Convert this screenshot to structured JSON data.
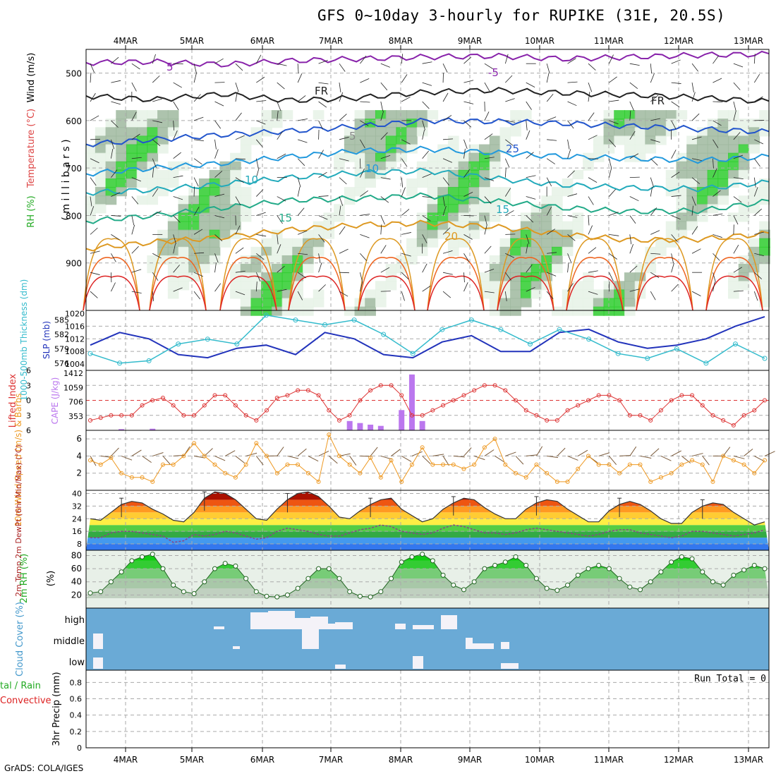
{
  "title": "GFS 0~10day 3-hourly for RUPIKE (31E, 20.5S)",
  "credit": "GrADS: COLA/IGES",
  "dates": [
    "4MAR",
    "5MAR",
    "6MAR",
    "7MAR",
    "8MAR",
    "9MAR",
    "10MAR",
    "11MAR",
    "12MAR",
    "13MAR"
  ],
  "colors": {
    "grid": "#aaaaaa",
    "rh_dark": "#2ecc2e",
    "rh_mid": "#9fb89f",
    "rh_light": "#e6f2e6",
    "cloud_blue": "#6aaad6",
    "cloud_white": "#f4f2f8",
    "cape_bar": "#bb77ee",
    "li_line": "#dd3333",
    "slp_line": "#2233bb",
    "thick_line": "#33bbcc",
    "wind_line": "#ee9922",
    "barb": "#7a5a3a"
  },
  "chart_data": [
    {
      "type": "heatmap",
      "name": "cross-section",
      "ylabel": "( m i l l i b a r s )",
      "ylabels_left": [
        "RH (%)",
        "Temperature (°C)",
        "Wind (m/s)"
      ],
      "y_ticks": [
        500,
        600,
        700,
        800,
        900
      ],
      "ylim": [
        1000,
        450
      ],
      "contour_labels": [
        "5",
        "-5",
        "FR",
        "FR",
        "10",
        "10",
        "15",
        "15",
        "20",
        "25",
        "5"
      ],
      "isotherms": [
        {
          "label": "-5",
          "color": "#8822aa",
          "levels": [
            478,
            476,
            482,
            474,
            470,
            466,
            464,
            470,
            466,
            462,
            460
          ]
        },
        {
          "label": "0 (FR)",
          "color": "#222222",
          "levels": [
            548,
            556,
            544,
            558,
            552,
            540,
            536,
            542,
            546,
            552,
            560
          ]
        },
        {
          "label": "5",
          "color": "#2255cc",
          "levels": [
            650,
            640,
            630,
            622,
            612,
            600,
            602,
            606,
            612,
            618,
            624
          ]
        },
        {
          "label": "10",
          "color": "#2299dd",
          "levels": [
            712,
            700,
            690,
            676,
            664,
            660,
            668,
            676,
            680,
            684,
            676
          ]
        },
        {
          "label": "15",
          "color": "#22aabb",
          "levels": [
            752,
            746,
            734,
            720,
            710,
            706,
            722,
            736,
            742,
            744,
            730
          ]
        },
        {
          "label": "20",
          "color": "#22aa88",
          "levels": [
            812,
            800,
            784,
            768,
            764,
            758,
            770,
            784,
            792,
            790,
            770
          ]
        },
        {
          "label": "25",
          "color": "#dd9922",
          "levels": [
            870,
            856,
            846,
            830,
            820,
            816,
            824,
            840,
            852,
            850,
            838
          ]
        }
      ]
    },
    {
      "type": "line",
      "name": "slp-thickness",
      "ylabel_left": "1000-500mb Thickness (dm)",
      "ylabel_right": "SLP (mb)",
      "left_ticks": [
        576,
        579,
        582,
        585
      ],
      "right_ticks": [
        1004,
        1008,
        1012,
        1016,
        1020
      ],
      "series": [
        {
          "name": "SLP (mb)",
          "values": [
            1010,
            1014,
            1012,
            1007,
            1006,
            1009,
            1010,
            1007,
            1014,
            1012,
            1007,
            1006,
            1011,
            1013,
            1008,
            1008,
            1014,
            1015,
            1011,
            1009,
            1010,
            1012,
            1016,
            1019
          ]
        },
        {
          "name": "1000-500mb Thickness (dm)",
          "values": [
            578,
            576,
            576.5,
            580,
            581,
            580,
            586,
            585,
            584,
            585,
            582,
            578,
            583,
            585,
            583,
            580,
            583,
            581,
            578,
            577,
            579,
            576,
            580,
            577
          ]
        }
      ]
    },
    {
      "type": "bar",
      "name": "cape-li",
      "ylabel_left": "Lifted Index",
      "ylabel_right": "CAPE (J/kg)",
      "left_ticks": [
        -6,
        -3,
        0,
        3,
        6
      ],
      "cape_ticks": [
        353,
        706,
        1059,
        1412
      ],
      "ylim_li": [
        6,
        -6
      ],
      "cape_values": [
        0,
        0,
        0,
        30,
        0,
        0,
        40,
        0,
        0,
        0,
        0,
        0,
        0,
        0,
        0,
        0,
        0,
        0,
        0,
        0,
        0,
        0,
        0,
        0,
        0,
        230,
        180,
        140,
        110,
        0,
        500,
        1380,
        230,
        0,
        0,
        0,
        0,
        0,
        0,
        0,
        0,
        0,
        0,
        0,
        0,
        0,
        0,
        0,
        0,
        0,
        0,
        0,
        0,
        0,
        0,
        0,
        0,
        0,
        0,
        0,
        0,
        0,
        0,
        0,
        0,
        0
      ],
      "li_values": [
        4,
        3.5,
        3,
        3,
        3,
        1,
        0,
        -0.5,
        1,
        3,
        3,
        1,
        -1,
        -1,
        1,
        3,
        4,
        2,
        -0.5,
        -1,
        -2,
        -2,
        -1,
        2,
        4,
        3,
        0,
        -2,
        -3,
        -3,
        -1,
        3,
        3,
        2,
        1,
        0,
        -1,
        -2,
        -3,
        -3,
        -2,
        0,
        2,
        3,
        4,
        4,
        2,
        1,
        0,
        -1,
        -1,
        0,
        3,
        3,
        4,
        2,
        0,
        -1,
        -1,
        1,
        3,
        4,
        5,
        3,
        2,
        0
      ]
    },
    {
      "type": "line",
      "name": "wind",
      "ylabel": "10m Wind Speed (m/s) & Barbs",
      "y_ticks": [
        2,
        4,
        6
      ],
      "ylim": [
        0,
        7
      ],
      "values": [
        3.5,
        3,
        3.8,
        2,
        1.5,
        1.5,
        1,
        3,
        3,
        4,
        5.5,
        4,
        3,
        2,
        1.5,
        3,
        5.5,
        4,
        2,
        3,
        3,
        2,
        1,
        6.5,
        4,
        3,
        2,
        3.8,
        1.5,
        3.5,
        1,
        3,
        5,
        3,
        3,
        3,
        2.5,
        3,
        5,
        6,
        3,
        2,
        1.5,
        3,
        2,
        1,
        1,
        2.5,
        4,
        3,
        3,
        2,
        3,
        3,
        1,
        1.5,
        2,
        3,
        3.5,
        3,
        1,
        4,
        3.5,
        3,
        2,
        3.5
      ]
    },
    {
      "type": "area",
      "name": "temp",
      "ylabel": "2m Temp 2m DewPt (6hr Min/Max) (°C)",
      "y_ticks": [
        8,
        16,
        24,
        32,
        40
      ],
      "ylim": [
        4,
        42
      ],
      "temp_values": [
        24,
        23,
        28,
        33,
        35,
        34,
        30,
        27,
        23,
        22,
        28,
        37,
        41,
        40,
        36,
        30,
        24,
        23,
        30,
        36,
        40,
        41,
        38,
        32,
        25,
        24,
        29,
        33,
        36,
        37,
        30,
        26,
        22,
        24,
        30,
        34,
        37,
        36,
        31,
        27,
        24,
        24,
        30,
        34,
        36,
        35,
        30,
        26,
        22,
        22,
        29,
        33,
        35,
        33,
        29,
        24,
        21,
        21,
        28,
        32,
        34,
        33,
        28,
        24,
        20,
        22
      ],
      "dewpoint_values": [
        12,
        12,
        15,
        16,
        16,
        15,
        14,
        13,
        9,
        10,
        14,
        13,
        14,
        16,
        15,
        13,
        11,
        12,
        16,
        18,
        17,
        16,
        14,
        13,
        13,
        15,
        17,
        18,
        20,
        19,
        16,
        15,
        14,
        15,
        18,
        20,
        19,
        17,
        15,
        15,
        14,
        15,
        17,
        18,
        17,
        16,
        15,
        14,
        13,
        14,
        16,
        17,
        17,
        15,
        14,
        13,
        12,
        13,
        16,
        16,
        15,
        14,
        13,
        14,
        15,
        17
      ]
    },
    {
      "type": "area",
      "name": "rh",
      "ylabel": "2m RH (%)",
      "y_ticks": [
        20,
        40,
        60,
        80
      ],
      "ylim": [
        0,
        88
      ],
      "values": [
        23,
        25,
        40,
        55,
        72,
        78,
        82,
        60,
        35,
        25,
        22,
        40,
        60,
        68,
        64,
        45,
        25,
        18,
        17,
        20,
        30,
        45,
        60,
        60,
        45,
        25,
        18,
        17,
        25,
        45,
        70,
        78,
        82,
        72,
        50,
        35,
        28,
        40,
        60,
        65,
        70,
        78,
        65,
        45,
        30,
        27,
        35,
        50,
        60,
        65,
        60,
        45,
        32,
        28,
        40,
        55,
        70,
        78,
        75,
        55,
        40,
        35,
        50,
        58,
        65,
        60
      ]
    },
    {
      "type": "table",
      "name": "cloud-cover",
      "ylabel": "Cloud Cover (%)",
      "rows": [
        "high",
        "middle",
        "low"
      ]
    },
    {
      "type": "bar",
      "name": "precip",
      "ylabel_left": "Total / Rain Convective",
      "ylabel": "3hr Precip (mm)",
      "y_ticks": [
        "0",
        "0.2",
        "0.4",
        "0.6",
        "0.8"
      ],
      "ylim": [
        0,
        0.95
      ],
      "annotation": "Run Total = 0",
      "values": []
    }
  ]
}
